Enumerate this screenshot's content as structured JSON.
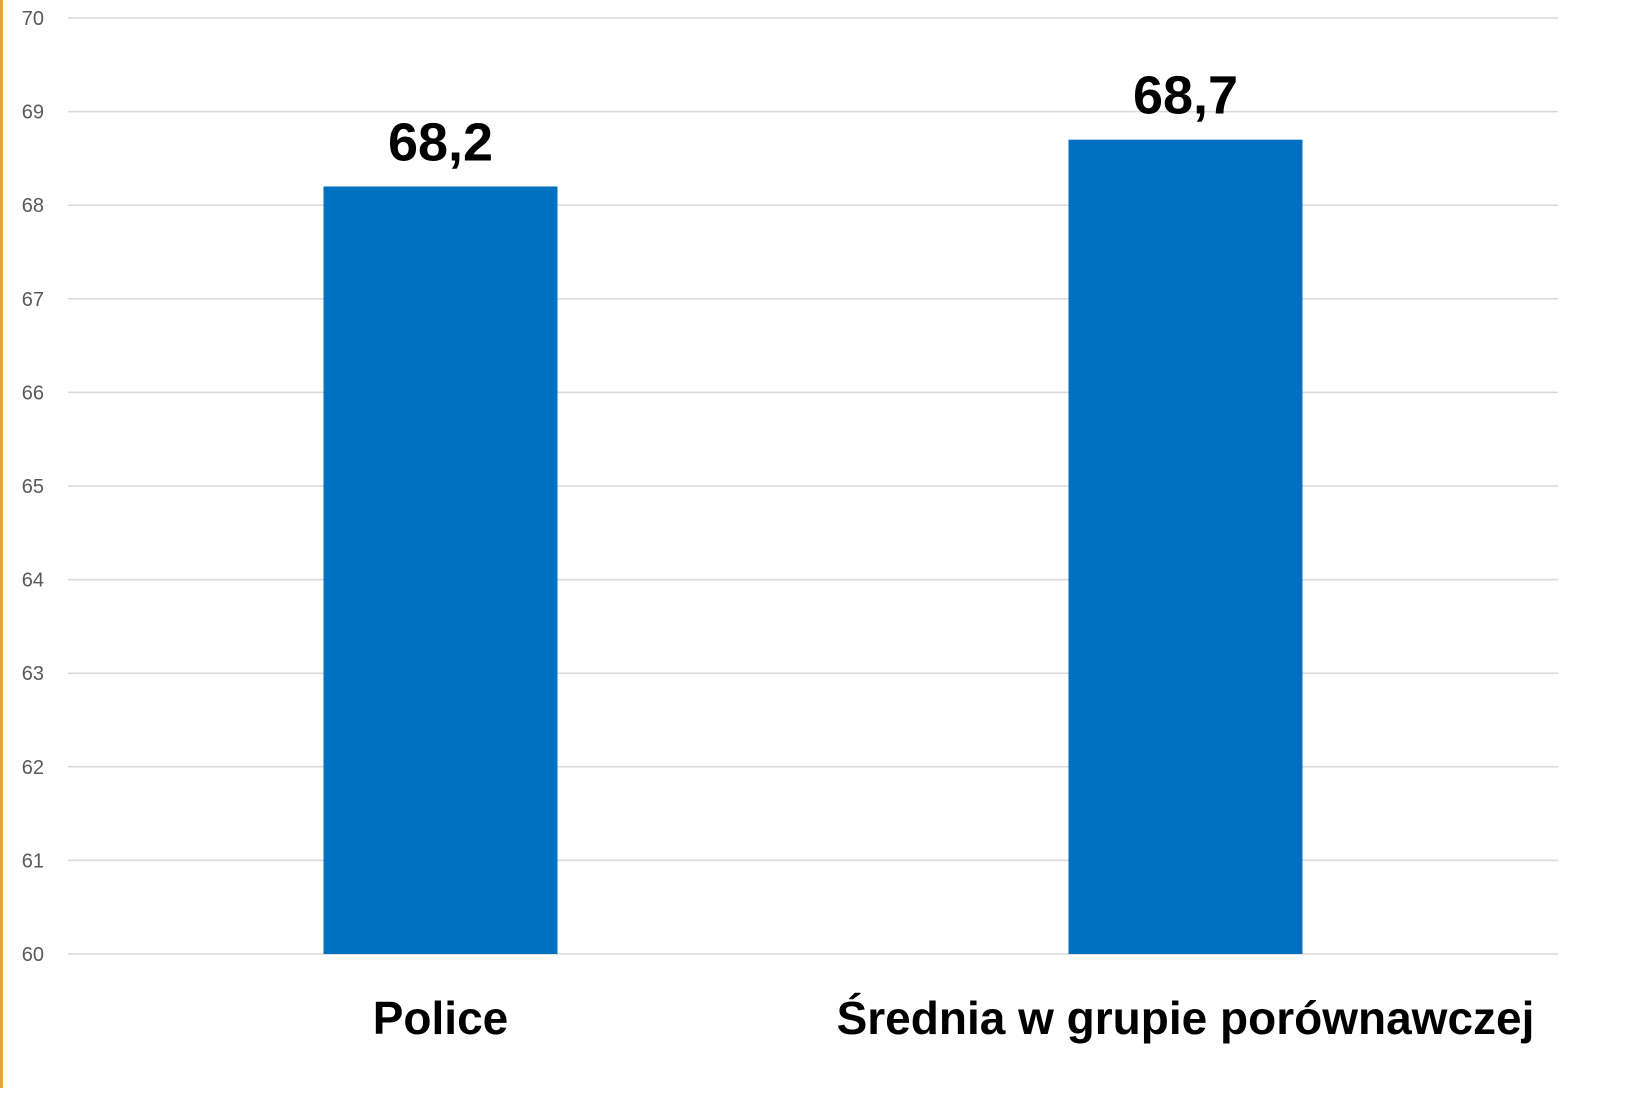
{
  "chart_data": {
    "type": "bar",
    "categories": [
      "Police",
      "Średnia w grupie porównawczej"
    ],
    "values": [
      68.2,
      68.7
    ],
    "value_labels": [
      "68,2",
      "68,7"
    ],
    "y_ticks": [
      "60",
      "61",
      "62",
      "63",
      "64",
      "65",
      "66",
      "67",
      "68",
      "69",
      "70"
    ],
    "ylim": [
      60,
      70
    ],
    "grid": true,
    "legend": "none",
    "title": "",
    "xlabel": "",
    "ylabel": ""
  },
  "colors": {
    "bar": "#0070C0",
    "grid": "#D9D9D9",
    "left_edge": "#E8A33D"
  }
}
